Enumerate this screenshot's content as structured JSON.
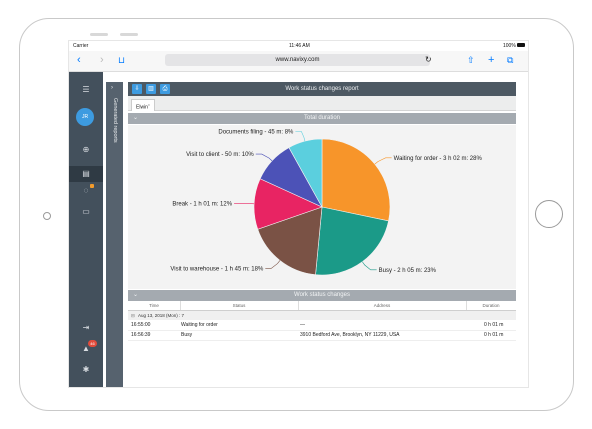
{
  "ios": {
    "carrier": "Carrier",
    "time": "11:46 AM",
    "battery": "100%"
  },
  "browser": {
    "url": "www.navixy.com"
  },
  "user": {
    "initials": "JR"
  },
  "sidebar": {
    "notification_count": "46"
  },
  "panel": {
    "title": "Generated reports"
  },
  "report": {
    "title": "Work status changes report",
    "tab": "Elwin"
  },
  "sections": {
    "total": "Total duration",
    "changes": "Work status changes"
  },
  "chart_data": {
    "type": "pie",
    "slices": [
      {
        "label": "Waiting for order - 3 h 02 m: 28%",
        "value": 28,
        "color": "#f7952a"
      },
      {
        "label": "Busy - 2 h 05 m: 23%",
        "value": 23,
        "color": "#1b9a88"
      },
      {
        "label": "Visit to warehouse - 1 h 45 m: 18%",
        "value": 18,
        "color": "#7a5245"
      },
      {
        "label": "Break - 1 h 01 m: 12%",
        "value": 12,
        "color": "#e82463"
      },
      {
        "label": "Visit to client - 50 m: 10%",
        "value": 10,
        "color": "#4c52b7"
      },
      {
        "label": "Documents filing - 45 m: 8%",
        "value": 8,
        "color": "#5bcfde"
      }
    ]
  },
  "table": {
    "headers": [
      "Time",
      "Status",
      "Address",
      "Duration"
    ],
    "group": "Aug 13, 2018 (Mon) : 7",
    "rows": [
      {
        "time": "16:55:00",
        "status": "Waiting for order",
        "address": "—",
        "duration": "0 h 01 m"
      },
      {
        "time": "16:56:39",
        "status": "Busy",
        "address": "3910 Bedford Ave, Brooklyn, NY 11229, USA",
        "duration": "0 h 01 m"
      }
    ]
  }
}
